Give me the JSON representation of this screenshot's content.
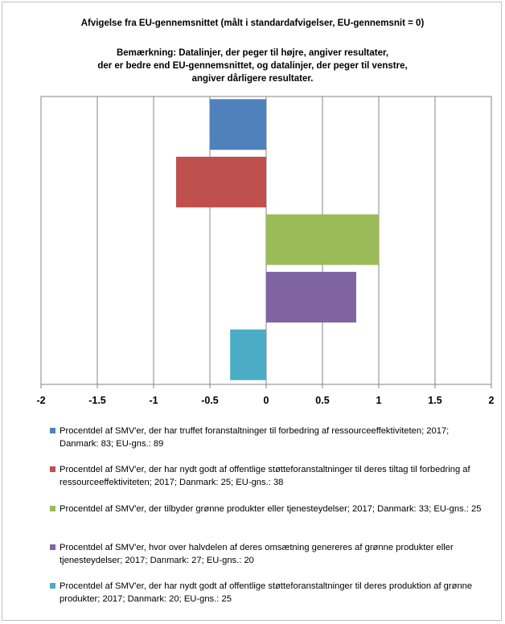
{
  "chart_data": {
    "type": "bar",
    "orientation": "horizontal",
    "title": "Afvigelse fra EU-gennemsnittet (målt i standardafvigelser, EU-gennemsnit = 0)",
    "subtitle": "Bemærkning: Datalinjer, der peger til højre, angiver resultater,\nder er bedre end EU-gennemsnittet, og datalinjer, der peger til venstre,\nangiver dårligere resultater.",
    "xlim": [
      -2,
      2
    ],
    "xticks": [
      "-2",
      "-1.5",
      "-1",
      "-0.5",
      "0",
      "0.5",
      "1",
      "1.5",
      "2"
    ],
    "grid": true,
    "legend_position": "bottom",
    "series": [
      {
        "name": "Procentdel af SMV'er, der har truffet foranstaltninger til forbedring af ressourceeffektiviteten; 2017; Danmark: 83; EU-gns.: 89",
        "value": -0.5,
        "color": "#4f81bd"
      },
      {
        "name": "Procentdel af SMV'er, der har nydt godt af offentlige støtteforanstaltninger til deres tiltag til forbedring af ressourceeffektiviteten; 2017; Danmark: 25; EU-gns.: 38",
        "value": -0.8,
        "color": "#c0504d"
      },
      {
        "name": "Procentdel af SMV'er, der tilbyder grønne produkter eller tjenesteydelser; 2017; Danmark: 33; EU-gns.: 25",
        "value": 1.0,
        "color": "#9bbb59"
      },
      {
        "name": "Procentdel af SMV'er, hvor over halvdelen af deres omsætning genereres af grønne produkter eller tjenesteydelser; 2017; Danmark: 27; EU-gns.: 20",
        "value": 0.8,
        "color": "#8064a2"
      },
      {
        "name": "Procentdel af SMV'er, der har nydt godt af offentlige støtteforanstaltninger til deres produktion af grønne produkter; 2017; Danmark: 20; EU-gns.: 25",
        "value": -0.32,
        "color": "#4bacc6"
      }
    ]
  }
}
